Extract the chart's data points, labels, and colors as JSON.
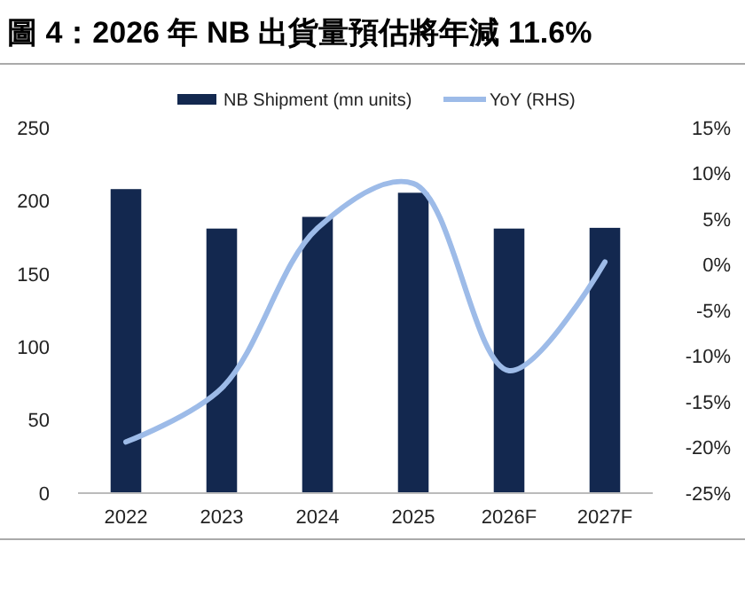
{
  "chart_data": {
    "type": "bar",
    "title": "圖 4：2026 年 NB 出貨量預估將年減 11.6%",
    "categories": [
      "2022",
      "2023",
      "2024",
      "2025",
      "2026F",
      "2027F"
    ],
    "series": [
      {
        "name": "NB Shipment (mn units)",
        "color": "#13284f",
        "values": [
          208,
          181,
          189,
          205.5,
          181,
          181.5
        ]
      },
      {
        "name": "YoY (RHS)",
        "type": "line",
        "axis": "y2",
        "color": "#9dbbe8",
        "values": [
          -19.4,
          -13.5,
          4,
          8.9,
          -11.6,
          0.3
        ]
      }
    ],
    "ylim": [
      0,
      250
    ],
    "yticks": [
      0,
      50,
      100,
      150,
      200,
      250
    ],
    "y2lim": [
      -25,
      15
    ],
    "y2ticks": [
      {
        "value": -25,
        "label": "-25%"
      },
      {
        "value": -20,
        "label": "-20%"
      },
      {
        "value": -15,
        "label": "-15%"
      },
      {
        "value": -10,
        "label": "-10%"
      },
      {
        "value": -5,
        "label": "-5%"
      },
      {
        "value": 0,
        "label": "0%"
      },
      {
        "value": 5,
        "label": "5%"
      },
      {
        "value": 10,
        "label": "10%"
      },
      {
        "value": 15,
        "label": "15%"
      }
    ],
    "legend": "top",
    "grid": false
  }
}
